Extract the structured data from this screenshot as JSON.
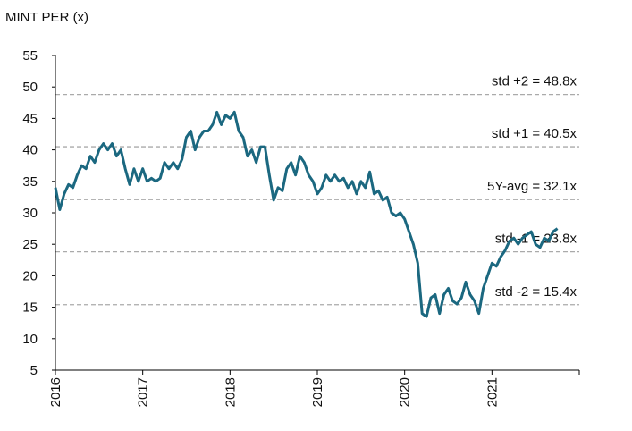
{
  "chart_data": {
    "type": "line",
    "title": "MINT PER (x)",
    "x": [
      2016,
      2016.05,
      2016.1,
      2016.15,
      2016.2,
      2016.25,
      2016.3,
      2016.35,
      2016.4,
      2016.45,
      2016.5,
      2016.55,
      2016.6,
      2016.65,
      2016.7,
      2016.75,
      2016.8,
      2016.85,
      2016.9,
      2016.95,
      2017,
      2017.05,
      2017.1,
      2017.15,
      2017.2,
      2017.25,
      2017.3,
      2017.35,
      2017.4,
      2017.45,
      2017.5,
      2017.55,
      2017.6,
      2017.65,
      2017.7,
      2017.75,
      2017.8,
      2017.85,
      2017.9,
      2017.95,
      2018,
      2018.05,
      2018.1,
      2018.15,
      2018.2,
      2018.25,
      2018.3,
      2018.35,
      2018.4,
      2018.45,
      2018.5,
      2018.55,
      2018.6,
      2018.65,
      2018.7,
      2018.75,
      2018.8,
      2018.85,
      2018.9,
      2018.95,
      2019,
      2019.05,
      2019.1,
      2019.15,
      2019.2,
      2019.25,
      2019.3,
      2019.35,
      2019.4,
      2019.45,
      2019.5,
      2019.55,
      2019.6,
      2019.65,
      2019.7,
      2019.75,
      2019.8,
      2019.85,
      2019.9,
      2019.95,
      2020,
      2020.05,
      2020.1,
      2020.15,
      2020.2,
      2020.25,
      2020.3,
      2020.35,
      2020.4,
      2020.45,
      2020.5,
      2020.55,
      2020.6,
      2020.65,
      2020.7,
      2020.75,
      2020.8,
      2020.85,
      2020.9,
      2020.95,
      2021,
      2021.05,
      2021.1,
      2021.15,
      2021.2,
      2021.25,
      2021.3,
      2021.35,
      2021.4,
      2021.45,
      2021.5,
      2021.55,
      2021.6,
      2021.65,
      2021.7,
      2021.75
    ],
    "series": [
      {
        "color": "#1b6880",
        "values": [
          34,
          30.5,
          33,
          34.5,
          34,
          36,
          37.5,
          37,
          39,
          38,
          40,
          41,
          40,
          41,
          39,
          40,
          37,
          34.5,
          37,
          35,
          37,
          35,
          35.5,
          35,
          35.5,
          38,
          37,
          38,
          37,
          38.5,
          42,
          43,
          40,
          42,
          43,
          43,
          44,
          46,
          44,
          45.5,
          45,
          46,
          43,
          42,
          39,
          40,
          38,
          40.5,
          40.5,
          36,
          32,
          34,
          33.5,
          37,
          38,
          36,
          39,
          38,
          36,
          35,
          33,
          34,
          36,
          35,
          36,
          35,
          35.5,
          34,
          35,
          33,
          35,
          34,
          36.5,
          33,
          33.5,
          32,
          32.5,
          30,
          29.5,
          30,
          29,
          27,
          25,
          22,
          14,
          13.5,
          16.5,
          17,
          14,
          17,
          18,
          16,
          15.5,
          16.5,
          19,
          17,
          16,
          14,
          18,
          20,
          22,
          21.5,
          23,
          24,
          25.5,
          26,
          25,
          26,
          26.5,
          27,
          25,
          24.5,
          26,
          25.5,
          27,
          27.5
        ]
      }
    ],
    "xlim": [
      2016,
      2022
    ],
    "xticks": [
      2016,
      2017,
      2018,
      2019,
      2020,
      2021
    ],
    "ylim": [
      5,
      55
    ],
    "yticks": [
      5,
      10,
      15,
      20,
      25,
      30,
      35,
      40,
      45,
      50,
      55
    ],
    "reference_lines": [
      {
        "value": 48.8,
        "label": "std +2 = 48.8x"
      },
      {
        "value": 40.5,
        "label": "std +1 = 40.5x"
      },
      {
        "value": 32.1,
        "label": "5Y-avg = 32.1x"
      },
      {
        "value": 23.8,
        "label": "std -1 = 23.8x"
      },
      {
        "value": 15.4,
        "label": "std -2 = 15.4x"
      }
    ]
  }
}
